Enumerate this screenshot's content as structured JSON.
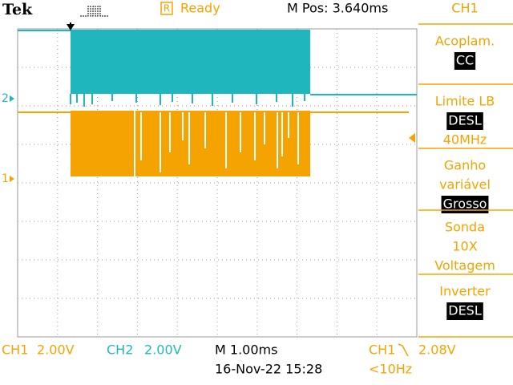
{
  "header": {
    "brand": "Tek",
    "trigger_state_icon": "R",
    "status": "Ready",
    "position": "M Pos: 3.640ms",
    "channel": "CH1"
  },
  "markers": {
    "ch2": "2",
    "ch1": "1"
  },
  "menu": [
    {
      "title": [
        "Acoplam."
      ],
      "value": "CC"
    },
    {
      "title": [
        "Limite LB"
      ],
      "value": "DESL",
      "extra": "40MHz"
    },
    {
      "title": [
        "Ganho",
        "variável"
      ],
      "value": "Grosso"
    },
    {
      "title": [
        "Sonda",
        "10X",
        "Voltagem"
      ]
    },
    {
      "title": [
        "Inverter"
      ],
      "value": "DESL"
    }
  ],
  "footer": {
    "ch1_label": "CH1",
    "ch1_scale": "2.00V",
    "ch2_label": "CH2",
    "ch2_scale": "2.00V",
    "timebase": "M 1.00ms",
    "datetime": "16-Nov-22 15:28",
    "trigger_source": "CH1",
    "trigger_level": "2.08V",
    "trigger_freq": "<10Hz"
  }
}
